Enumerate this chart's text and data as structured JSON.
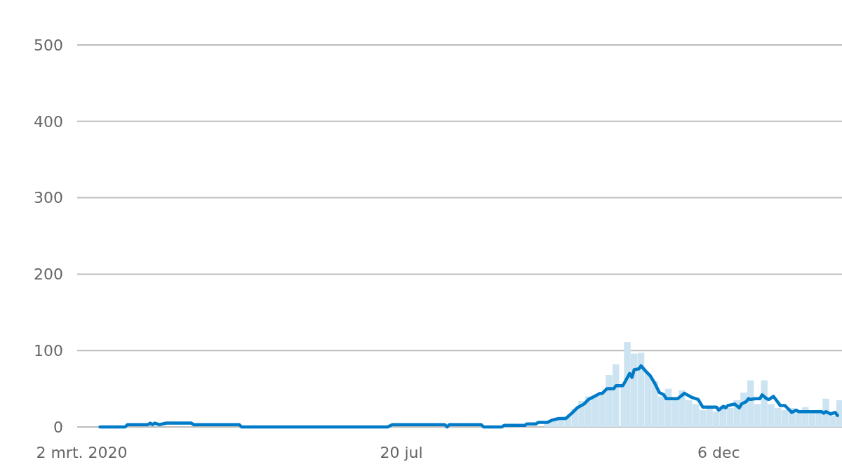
{
  "chart_data": {
    "type": "line",
    "xlim": [
      "2020-02-29",
      "2021-01-29"
    ],
    "xticks": [
      {
        "value": "2020-03-02",
        "label": "2 mrt. 2020"
      },
      {
        "value": "2020-07-20",
        "label": "20 jul"
      },
      {
        "value": "2020-12-06",
        "label": "6 dec"
      }
    ],
    "ylim": [
      0,
      500
    ],
    "yticks": [
      0,
      100,
      200,
      300,
      400,
      500
    ],
    "grid": "y",
    "series": [
      {
        "type": "bar",
        "color": "#cce3f2",
        "x": [
          "2020-09-22",
          "2020-09-25",
          "2020-09-28",
          "2020-10-01",
          "2020-10-04",
          "2020-10-07",
          "2020-10-10",
          "2020-10-13",
          "2020-10-16",
          "2020-10-19",
          "2020-10-22",
          "2020-10-25",
          "2020-10-27",
          "2020-10-30",
          "2020-11-02",
          "2020-11-05",
          "2020-11-08",
          "2020-11-11",
          "2020-11-14",
          "2020-11-17",
          "2020-11-20",
          "2020-11-23",
          "2020-11-26",
          "2020-11-29",
          "2020-12-02",
          "2020-12-05",
          "2020-12-08",
          "2020-12-11",
          "2020-12-14",
          "2020-12-17",
          "2020-12-20",
          "2020-12-23",
          "2020-12-26",
          "2020-12-29",
          "2021-01-01",
          "2021-01-04",
          "2021-01-07",
          "2021-01-10",
          "2021-01-13",
          "2021-01-16",
          "2021-01-19",
          "2021-01-22",
          "2021-01-25",
          "2021-01-28"
        ],
        "values": [
          6,
          9,
          12,
          14,
          24,
          34,
          40,
          42,
          45,
          68,
          82,
          55,
          111,
          96,
          97,
          70,
          60,
          40,
          50,
          35,
          48,
          35,
          30,
          22,
          25,
          20,
          28,
          25,
          35,
          45,
          61,
          30,
          61,
          30,
          25,
          22,
          25,
          20,
          26,
          18,
          20,
          37,
          15,
          35
        ]
      },
      {
        "color": "#007bc7",
        "x": [
          "2020-03-10",
          "2020-03-21",
          "2020-03-22",
          "2020-03-31",
          "2020-04-01",
          "2020-04-02",
          "2020-04-03",
          "2020-04-05",
          "2020-04-08",
          "2020-04-19",
          "2020-04-20",
          "2020-05-10",
          "2020-05-11",
          "2020-07-14",
          "2020-07-16",
          "2020-08-08",
          "2020-08-09",
          "2020-08-10",
          "2020-08-24",
          "2020-08-25",
          "2020-09-02",
          "2020-09-03",
          "2020-09-12",
          "2020-09-13",
          "2020-09-17",
          "2020-09-18",
          "2020-09-22",
          "2020-09-24",
          "2020-09-27",
          "2020-09-30",
          "2020-10-03",
          "2020-10-05",
          "2020-10-08",
          "2020-10-10",
          "2020-10-12",
          "2020-10-15",
          "2020-10-16",
          "2020-10-18",
          "2020-10-21",
          "2020-10-22",
          "2020-10-25",
          "2020-10-28",
          "2020-10-29",
          "2020-10-30",
          "2020-11-01",
          "2020-11-02",
          "2020-11-04",
          "2020-11-06",
          "2020-11-08",
          "2020-11-10",
          "2020-11-12",
          "2020-11-13",
          "2020-11-18",
          "2020-11-21",
          "2020-11-24",
          "2020-11-27",
          "2020-11-29",
          "2020-12-05",
          "2020-12-06",
          "2020-12-08",
          "2020-12-09",
          "2020-12-10",
          "2020-12-13",
          "2020-12-15",
          "2020-12-16",
          "2020-12-18",
          "2020-12-19",
          "2020-12-20",
          "2020-12-22",
          "2020-12-24",
          "2020-12-25",
          "2020-12-27",
          "2020-12-28",
          "2020-12-30",
          "2021-01-02",
          "2021-01-04",
          "2021-01-07",
          "2021-01-09",
          "2021-01-10",
          "2021-01-20",
          "2021-01-21",
          "2021-01-22",
          "2021-01-24",
          "2021-01-26",
          "2021-01-27"
        ],
        "values": [
          0,
          0,
          3,
          3,
          5,
          3,
          5,
          3,
          5,
          5,
          3,
          3,
          0,
          0,
          3,
          3,
          0,
          3,
          3,
          0,
          0,
          2,
          2,
          4,
          4,
          6,
          6,
          9,
          11,
          11,
          19,
          25,
          30,
          36,
          39,
          44,
          44,
          50,
          50,
          54,
          54,
          70,
          65,
          75,
          76,
          80,
          73,
          67,
          57,
          45,
          42,
          37,
          37,
          44,
          39,
          36,
          26,
          26,
          22,
          27,
          25,
          28,
          30,
          25,
          30,
          33,
          37,
          36,
          37,
          37,
          42,
          37,
          36,
          40,
          28,
          28,
          19,
          22,
          20,
          20,
          18,
          20,
          17,
          19,
          15
        ]
      }
    ]
  }
}
